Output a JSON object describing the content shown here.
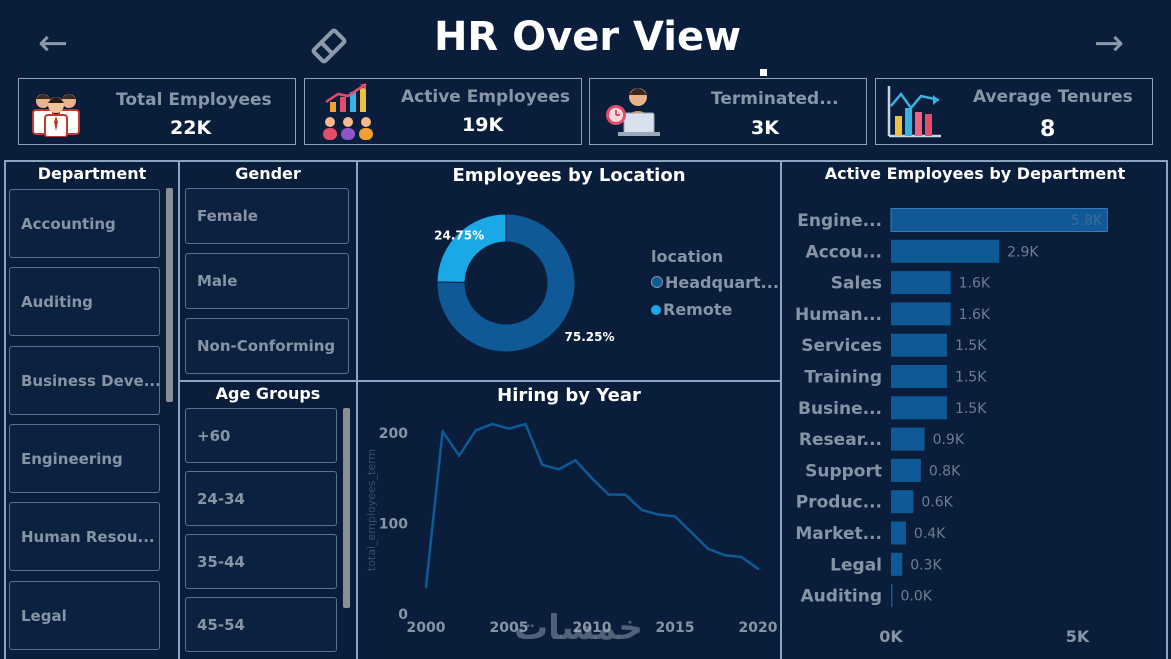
{
  "header": {
    "title": "HR Over View",
    "back_arrow": "←",
    "forward_arrow": "→"
  },
  "kpis": [
    {
      "label": "Total Employees",
      "value": "22K",
      "icon": "employees-group-icon"
    },
    {
      "label": "Active Employees",
      "value": "19K",
      "icon": "active-employees-icon"
    },
    {
      "label": "Terminated...",
      "value": "3K",
      "icon": "terminated-employee-icon"
    },
    {
      "label": "Average Tenures",
      "value": "8",
      "icon": "tenure-chart-icon"
    }
  ],
  "department_slicer": {
    "title": "Department",
    "items": [
      "Accounting",
      "Auditing",
      "Business Deve...",
      "Engineering",
      "Human Resou...",
      "Legal"
    ]
  },
  "gender_slicer": {
    "title": "Gender",
    "items": [
      "Female",
      "Male",
      "Non-Conforming"
    ]
  },
  "age_slicer": {
    "title": "Age Groups",
    "items": [
      "+60",
      "24-34",
      "35-44",
      "45-54"
    ]
  },
  "location_chart": {
    "title": "Employees by Location",
    "legend_title": "location",
    "chart_data": {
      "type": "pie",
      "donut": true,
      "slices": [
        {
          "name": "Headquart...",
          "value": 75.25,
          "label": "75.25%",
          "color": "#0f5a96"
        },
        {
          "name": "Remote",
          "value": 24.75,
          "label": "24.75%",
          "color": "#19a9e6"
        }
      ]
    }
  },
  "hiring_chart": {
    "title": "Hiring by Year",
    "ylabel": "total_employees_term",
    "xticks": [
      "2000",
      "2005",
      "2010",
      "2015",
      "2020"
    ],
    "yticks": [
      "0",
      "100",
      "200"
    ],
    "chart_data": {
      "type": "line",
      "x": [
        2000,
        2001,
        2002,
        2003,
        2004,
        2005,
        2006,
        2007,
        2008,
        2009,
        2010,
        2011,
        2012,
        2013,
        2014,
        2015,
        2016,
        2017,
        2018,
        2019,
        2020
      ],
      "y": [
        30,
        202,
        175,
        203,
        210,
        205,
        210,
        165,
        160,
        170,
        150,
        132,
        132,
        115,
        110,
        108,
        90,
        72,
        65,
        63,
        50
      ],
      "xlim": [
        2000,
        2020
      ],
      "ylim": [
        0,
        230
      ],
      "color": "#0f5a96"
    }
  },
  "dept_chart": {
    "title": "Active Employees by Department",
    "xticks": [
      "0K",
      "5K"
    ],
    "chart_data": {
      "type": "bar",
      "orientation": "horizontal",
      "categories": [
        "Engine...",
        "Accou...",
        "Sales",
        "Human...",
        "Services",
        "Training",
        "Busine...",
        "Resear...",
        "Support",
        "Produc...",
        "Market...",
        "Legal",
        "Auditing"
      ],
      "values": [
        5.8,
        2.9,
        1.6,
        1.6,
        1.5,
        1.5,
        1.5,
        0.9,
        0.8,
        0.6,
        0.4,
        0.3,
        0.0
      ],
      "labels": [
        "5.8K",
        "2.9K",
        "1.6K",
        "1.6K",
        "1.5K",
        "1.5K",
        "1.5K",
        "0.9K",
        "0.8K",
        "0.6K",
        "0.4K",
        "0.3K",
        "0.0K"
      ],
      "xlim": [
        0,
        6.3
      ],
      "color": "#0f5a96"
    }
  },
  "watermark": "خمسات"
}
